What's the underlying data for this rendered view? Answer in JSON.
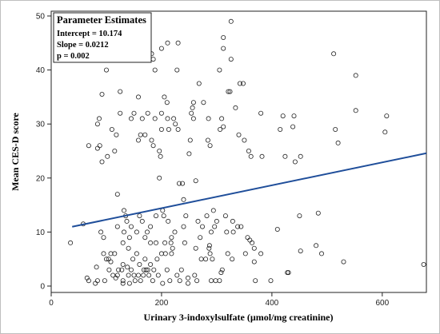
{
  "chart_data": {
    "type": "scatter",
    "title": "",
    "xlabel": "Urinary 3-indoxylsulfate (µmol/mg creatinine)",
    "ylabel": "Mean CES-D score",
    "xlim": [
      0,
      680
    ],
    "ylim": [
      0,
      50
    ],
    "xticks": [
      0,
      200,
      400,
      600
    ],
    "yticks": [
      0,
      10,
      20,
      30,
      40,
      50
    ],
    "grid": false,
    "legend_position": "top-left",
    "marker_color": "#222222",
    "line_color": "#1f4e9a",
    "regression": {
      "intercept": 10.174,
      "slope": 0.0212,
      "x_range": [
        38,
        680
      ]
    },
    "annotation": {
      "title": "Parameter Estimates",
      "lines": [
        "Intercept = 10.174",
        "Slope = 0.0212",
        "p = 0.002"
      ]
    },
    "points": [
      [
        35,
        8
      ],
      [
        58,
        11.5
      ],
      [
        65,
        1.5
      ],
      [
        68,
        1
      ],
      [
        68,
        26
      ],
      [
        80,
        0.5
      ],
      [
        82,
        3.5
      ],
      [
        84,
        1
      ],
      [
        84,
        30
      ],
      [
        84,
        25.5
      ],
      [
        87,
        31
      ],
      [
        88,
        26
      ],
      [
        90,
        10
      ],
      [
        92,
        35.5
      ],
      [
        92,
        23
      ],
      [
        95,
        6
      ],
      [
        95,
        9
      ],
      [
        97,
        1
      ],
      [
        100,
        40
      ],
      [
        100,
        5
      ],
      [
        102,
        24
      ],
      [
        104,
        5
      ],
      [
        105,
        3
      ],
      [
        108,
        6
      ],
      [
        108,
        4.5
      ],
      [
        110,
        29
      ],
      [
        112,
        2
      ],
      [
        115,
        25
      ],
      [
        115,
        6
      ],
      [
        117,
        1.5
      ],
      [
        118,
        28
      ],
      [
        120,
        2
      ],
      [
        120,
        11
      ],
      [
        120,
        17
      ],
      [
        122,
        3
      ],
      [
        125,
        32
      ],
      [
        125,
        36
      ],
      [
        128,
        3
      ],
      [
        130,
        1
      ],
      [
        130,
        0.5
      ],
      [
        130,
        4
      ],
      [
        130,
        8
      ],
      [
        132,
        10
      ],
      [
        132,
        14
      ],
      [
        135,
        13
      ],
      [
        137,
        12
      ],
      [
        138,
        3.5
      ],
      [
        140,
        2
      ],
      [
        140,
        7
      ],
      [
        142,
        0.5
      ],
      [
        142,
        9
      ],
      [
        145,
        3
      ],
      [
        145,
        31
      ],
      [
        145,
        11
      ],
      [
        148,
        5
      ],
      [
        150,
        2
      ],
      [
        150,
        32
      ],
      [
        152,
        1
      ],
      [
        155,
        10
      ],
      [
        155,
        6
      ],
      [
        158,
        27
      ],
      [
        158,
        35
      ],
      [
        158,
        2
      ],
      [
        160,
        4
      ],
      [
        160,
        13
      ],
      [
        162,
        28
      ],
      [
        162,
        1
      ],
      [
        165,
        31
      ],
      [
        165,
        12
      ],
      [
        167,
        2
      ],
      [
        168,
        3
      ],
      [
        170,
        9
      ],
      [
        170,
        5
      ],
      [
        170,
        28
      ],
      [
        172,
        3
      ],
      [
        174,
        10
      ],
      [
        175,
        32
      ],
      [
        175,
        3
      ],
      [
        177,
        2
      ],
      [
        180,
        4
      ],
      [
        180,
        11
      ],
      [
        180,
        8
      ],
      [
        182,
        43
      ],
      [
        182,
        27
      ],
      [
        184,
        1
      ],
      [
        185,
        42
      ],
      [
        185,
        26
      ],
      [
        186,
        3
      ],
      [
        188,
        31
      ],
      [
        188,
        40
      ],
      [
        190,
        13
      ],
      [
        190,
        8
      ],
      [
        192,
        5
      ],
      [
        194,
        2
      ],
      [
        196,
        20
      ],
      [
        196,
        25
      ],
      [
        198,
        24
      ],
      [
        200,
        44
      ],
      [
        200,
        32
      ],
      [
        200,
        29
      ],
      [
        200,
        6
      ],
      [
        202,
        0.5
      ],
      [
        202,
        14
      ],
      [
        204,
        13
      ],
      [
        205,
        35
      ],
      [
        206,
        8
      ],
      [
        207,
        6
      ],
      [
        210,
        34
      ],
      [
        210,
        3
      ],
      [
        211,
        45
      ],
      [
        211,
        31
      ],
      [
        212,
        12
      ],
      [
        213,
        29
      ],
      [
        215,
        1
      ],
      [
        217,
        8
      ],
      [
        218,
        9
      ],
      [
        218,
        6
      ],
      [
        220,
        7
      ],
      [
        222,
        31
      ],
      [
        224,
        10
      ],
      [
        225,
        30
      ],
      [
        228,
        40
      ],
      [
        228,
        2
      ],
      [
        230,
        45
      ],
      [
        230,
        29
      ],
      [
        232,
        19
      ],
      [
        233,
        1
      ],
      [
        236,
        3
      ],
      [
        238,
        19
      ],
      [
        240,
        16
      ],
      [
        240,
        11
      ],
      [
        242,
        8
      ],
      [
        244,
        13
      ],
      [
        248,
        0.5
      ],
      [
        248,
        1.5
      ],
      [
        250,
        24.5
      ],
      [
        252,
        27
      ],
      [
        254,
        32
      ],
      [
        256,
        33
      ],
      [
        258,
        34
      ],
      [
        258,
        31
      ],
      [
        260,
        2
      ],
      [
        262,
        7
      ],
      [
        262,
        19.5
      ],
      [
        264,
        1
      ],
      [
        266,
        12
      ],
      [
        268,
        37.5
      ],
      [
        270,
        9
      ],
      [
        272,
        5
      ],
      [
        274,
        11
      ],
      [
        276,
        34
      ],
      [
        280,
        5
      ],
      [
        282,
        13
      ],
      [
        284,
        27
      ],
      [
        285,
        31
      ],
      [
        286,
        7
      ],
      [
        287,
        7.5
      ],
      [
        288,
        6
      ],
      [
        288,
        26
      ],
      [
        290,
        1
      ],
      [
        290,
        10
      ],
      [
        292,
        5
      ],
      [
        294,
        14
      ],
      [
        296,
        11
      ],
      [
        298,
        1
      ],
      [
        300,
        12
      ],
      [
        305,
        40
      ],
      [
        305,
        1
      ],
      [
        306,
        29
      ],
      [
        308,
        2.5
      ],
      [
        309,
        31
      ],
      [
        310,
        3
      ],
      [
        312,
        46
      ],
      [
        312,
        44
      ],
      [
        312,
        29.5
      ],
      [
        316,
        13
      ],
      [
        318,
        10
      ],
      [
        320,
        6
      ],
      [
        321,
        36
      ],
      [
        324,
        36
      ],
      [
        326,
        42
      ],
      [
        326,
        49
      ],
      [
        328,
        5
      ],
      [
        329,
        12
      ],
      [
        330,
        10
      ],
      [
        334,
        33
      ],
      [
        338,
        11
      ],
      [
        340,
        28
      ],
      [
        342,
        37.5
      ],
      [
        344,
        11
      ],
      [
        348,
        37.5
      ],
      [
        350,
        27
      ],
      [
        352,
        6
      ],
      [
        356,
        9
      ],
      [
        358,
        25
      ],
      [
        360,
        8.5
      ],
      [
        362,
        24
      ],
      [
        364,
        8
      ],
      [
        368,
        4.5
      ],
      [
        368,
        7
      ],
      [
        370,
        1
      ],
      [
        380,
        32
      ],
      [
        380,
        6
      ],
      [
        382,
        24
      ],
      [
        398,
        1
      ],
      [
        410,
        10.5
      ],
      [
        415,
        29
      ],
      [
        420,
        31.5
      ],
      [
        424,
        24
      ],
      [
        428,
        2.5
      ],
      [
        430,
        2.5
      ],
      [
        438,
        29.5
      ],
      [
        440,
        31.5
      ],
      [
        442,
        23
      ],
      [
        450,
        13
      ],
      [
        452,
        24
      ],
      [
        452,
        6.5
      ],
      [
        480,
        7.5
      ],
      [
        484,
        13.5
      ],
      [
        490,
        6
      ],
      [
        512,
        43
      ],
      [
        515,
        29
      ],
      [
        520,
        26.5
      ],
      [
        530,
        4.5
      ],
      [
        552,
        39
      ],
      [
        552,
        32.5
      ],
      [
        605,
        28.5
      ],
      [
        608,
        31.5
      ],
      [
        675,
        4
      ]
    ]
  }
}
